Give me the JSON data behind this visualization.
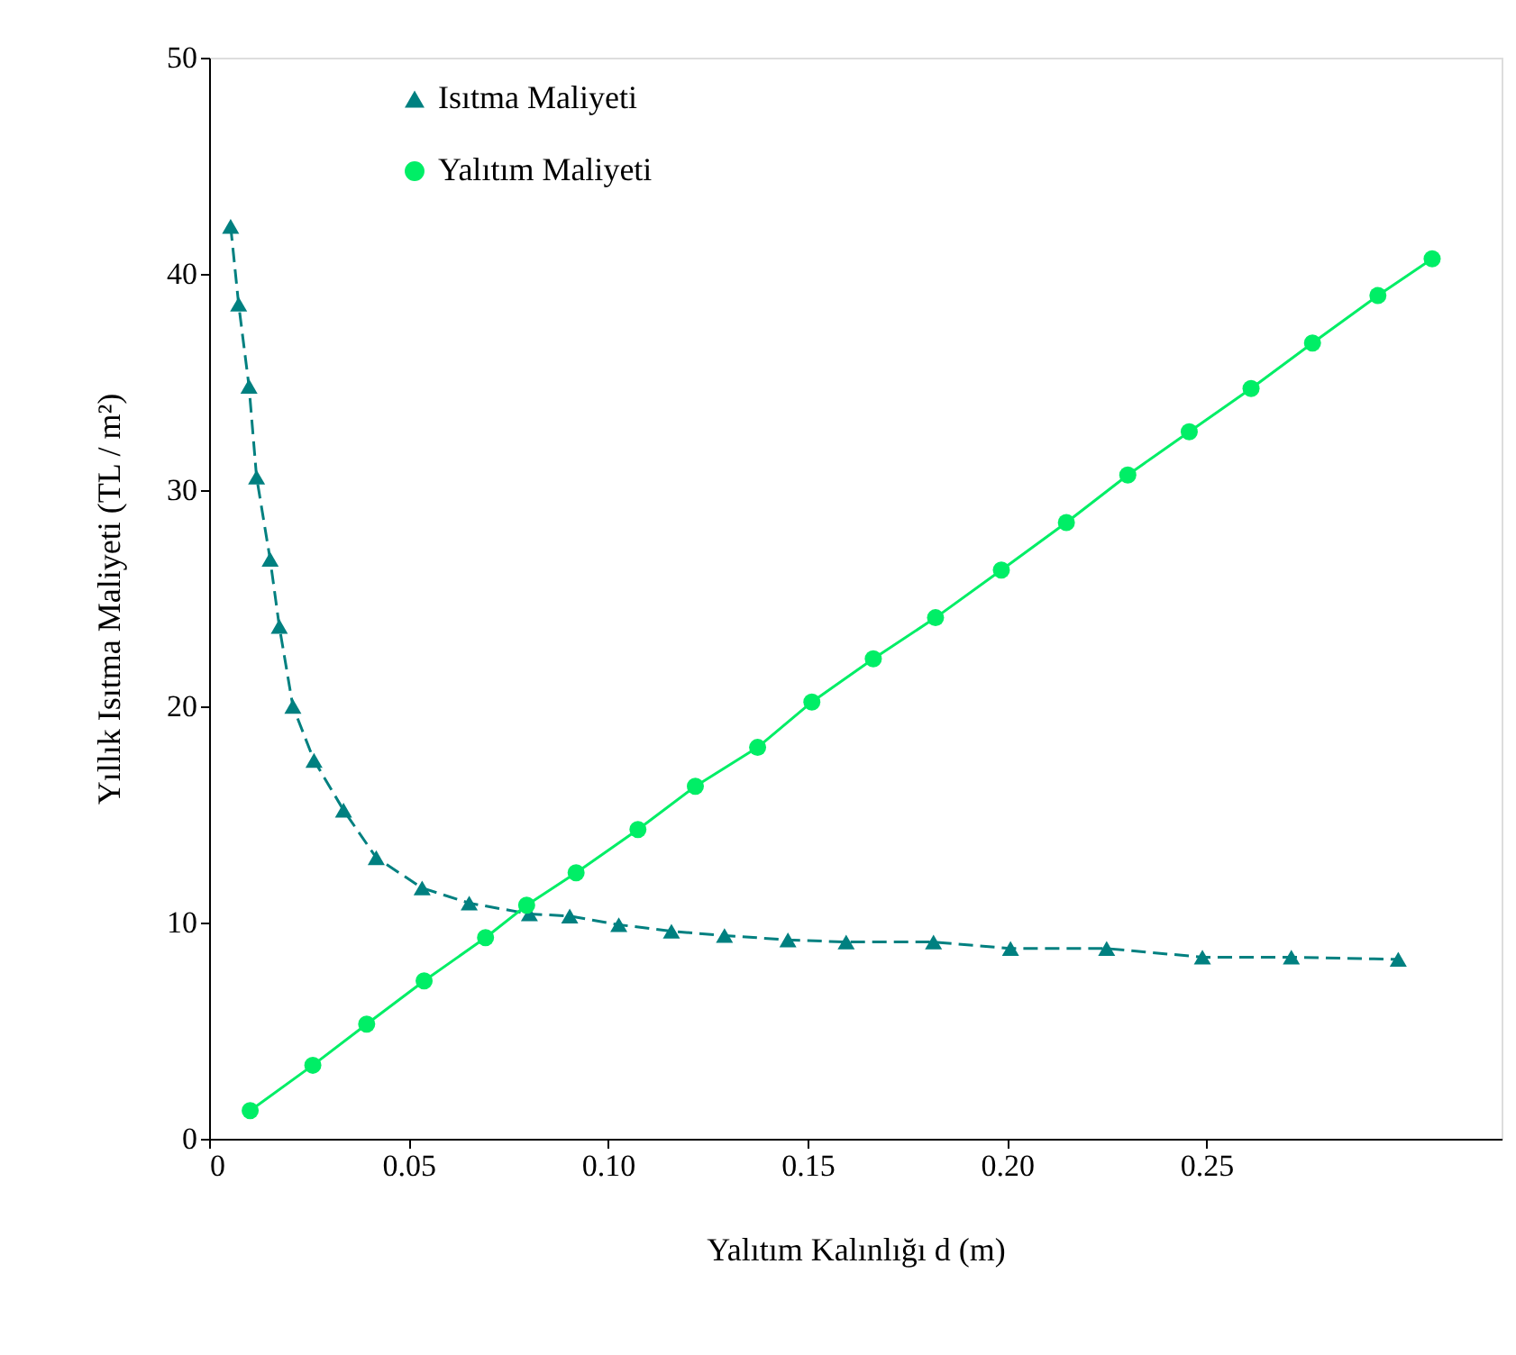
{
  "chart_data": {
    "type": "line",
    "xlabel": "Yalıtım Kalınlığı d (m)",
    "ylabel": "Yıllık Isıtma Maliyeti  (TL / m²)",
    "xlim": [
      0,
      0.324
    ],
    "xticks": [
      {
        "value": 0,
        "label": "0"
      },
      0.05,
      {
        "value": 0.1,
        "label": "0.10"
      },
      0.15,
      {
        "value": 0.2,
        "label": "0.20"
      },
      0.25
    ],
    "ylim": [
      0,
      50
    ],
    "yticks": [
      0,
      10,
      20,
      30,
      40,
      50
    ],
    "grid": false,
    "legend": "top left",
    "series": [
      {
        "name": "Isıtma Maliyeti",
        "color": "#008080",
        "marker": "triangle",
        "line_style": "dashed",
        "x": [
          0.0054,
          0.0074,
          0.01,
          0.0119,
          0.0153,
          0.0176,
          0.021,
          0.0263,
          0.0337,
          0.0419,
          0.0534,
          0.0652,
          0.0803,
          0.0904,
          0.1027,
          0.1159,
          0.1292,
          0.1451,
          0.1597,
          0.1816,
          0.2009,
          0.225,
          0.249,
          0.2713,
          0.2981
        ],
        "values": [
          42.2,
          38.6,
          34.8,
          30.6,
          26.8,
          23.7,
          20.0,
          17.5,
          15.2,
          13.0,
          11.6,
          10.9,
          10.4,
          10.3,
          9.9,
          9.6,
          9.4,
          9.2,
          9.1,
          9.1,
          8.8,
          8.8,
          8.4,
          8.4,
          8.3
        ]
      },
      {
        "name": "Yalıtım Maliyeti",
        "color": "#00ee66",
        "marker": "circle",
        "line_style": "solid",
        "x": [
          0.0103,
          0.026,
          0.0395,
          0.0539,
          0.0693,
          0.0796,
          0.092,
          0.1075,
          0.1219,
          0.1375,
          0.1511,
          0.1665,
          0.1821,
          0.1986,
          0.2149,
          0.2303,
          0.2457,
          0.2612,
          0.2766,
          0.293,
          0.3066
        ],
        "values": [
          1.3,
          3.4,
          5.3,
          7.3,
          9.3,
          10.8,
          12.3,
          14.3,
          16.3,
          18.1,
          20.2,
          22.2,
          24.1,
          26.3,
          28.5,
          30.7,
          32.7,
          34.7,
          36.8,
          39.0,
          40.7
        ]
      }
    ]
  }
}
